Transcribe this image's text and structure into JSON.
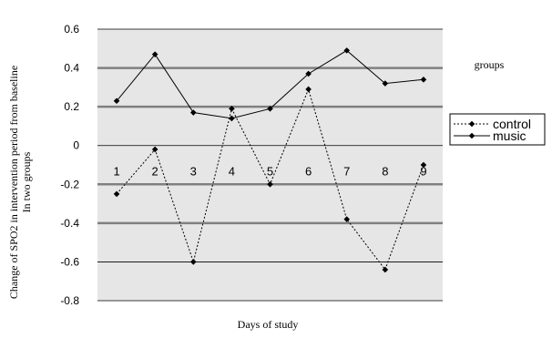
{
  "chart_data": {
    "type": "line",
    "title": "",
    "xlabel": "Days of study",
    "ylabel_line1": "Change of SPO2 in intervention period from baseline",
    "ylabel_line2": "In two groups",
    "categories": [
      "1",
      "2",
      "3",
      "4",
      "5",
      "6",
      "7",
      "8",
      "9"
    ],
    "ylim": [
      -0.8,
      0.6
    ],
    "yticks": [
      "0.6",
      "0.4",
      "0.2",
      "0",
      "-0.2",
      "-0.4",
      "-0.6",
      "-0.8"
    ],
    "grid": "horizontal",
    "legend": {
      "title": "groups",
      "placement": "right"
    },
    "series": [
      {
        "name": "control",
        "style": "dotted",
        "values": [
          -0.25,
          -0.02,
          -0.6,
          0.19,
          -0.2,
          0.29,
          -0.38,
          -0.64,
          -0.1
        ]
      },
      {
        "name": "music",
        "style": "solid",
        "values": [
          0.23,
          0.47,
          0.17,
          0.14,
          0.19,
          0.37,
          0.49,
          0.32,
          0.34
        ]
      }
    ],
    "colors": {
      "plot_background": "#e6e6e6",
      "grid_major": "#808080",
      "grid_minor": "#000000",
      "line": "#000000"
    }
  }
}
